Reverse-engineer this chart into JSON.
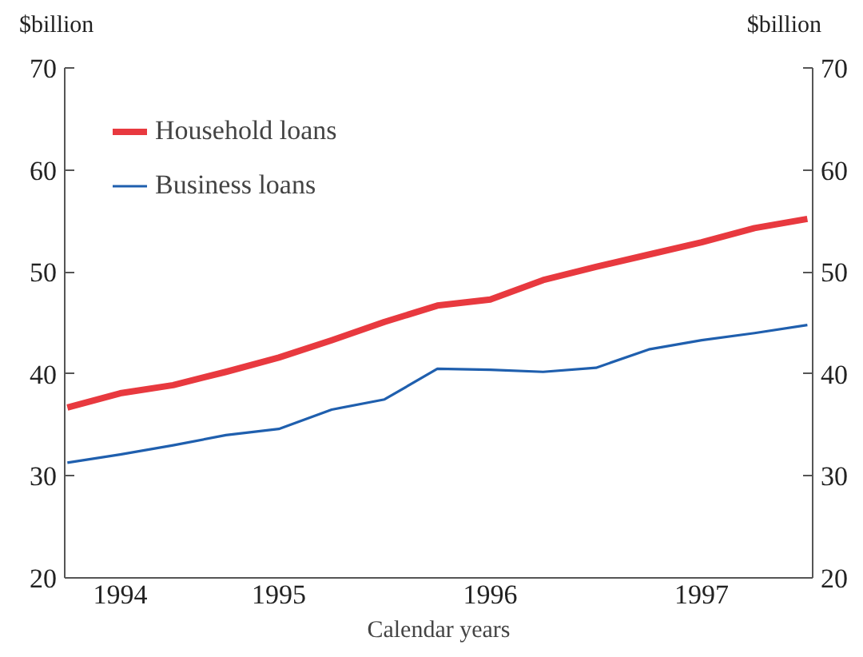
{
  "chart_data": {
    "type": "line",
    "xlabel": "Calendar years",
    "ylabel": "$billion",
    "y2label": "$billion",
    "categories": [
      null,
      "1994",
      null,
      null,
      "1995",
      null,
      null,
      null,
      "1996",
      null,
      null,
      null,
      "1997",
      null,
      null
    ],
    "series": [
      {
        "name": "Household loans",
        "color": "#e8393f",
        "values": [
          36.7,
          38.1,
          38.9,
          40.2,
          41.6,
          43.3,
          45.1,
          46.7,
          47.3,
          49.2,
          50.5,
          51.7,
          52.9,
          54.3,
          55.2
        ]
      },
      {
        "name": "Business loans",
        "color": "#1f5fae",
        "values": [
          31.3,
          32.1,
          33.0,
          34.0,
          34.6,
          36.5,
          37.5,
          40.5,
          40.4,
          40.2,
          40.6,
          42.4,
          43.3,
          44.0,
          44.8
        ]
      }
    ],
    "ylim": [
      20,
      70
    ],
    "yticks": [
      20,
      30,
      40,
      50,
      60,
      70
    ],
    "y2lim": [
      20,
      70
    ],
    "y2ticks": [
      20,
      30,
      40,
      50,
      60,
      70
    ],
    "grid": false,
    "legend": "top left",
    "marker": "none",
    "line_style": "solid"
  }
}
